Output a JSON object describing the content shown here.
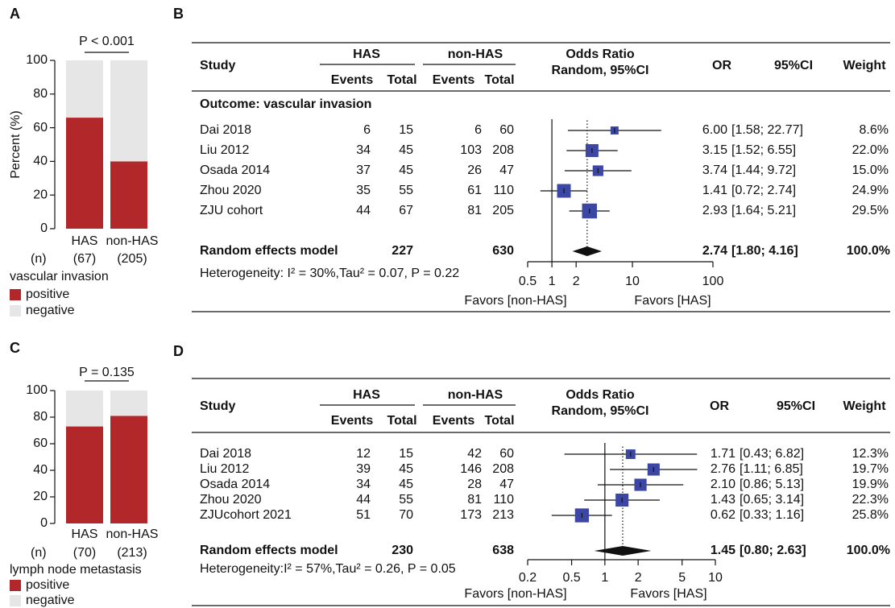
{
  "chart_data": [
    {
      "type": "stacked_bar",
      "panel": "A",
      "title": "P < 0.001",
      "ylabel": "Percent (%)",
      "ylim": [
        0,
        100
      ],
      "yticks": [
        0,
        20,
        40,
        60,
        80,
        100
      ],
      "categories": [
        "HAS",
        "non-HAS"
      ],
      "n_label": "(n)",
      "n": [
        "(67)",
        "(205)"
      ],
      "xlabel": "vascular invasion",
      "series": [
        {
          "name": "positive",
          "color": "#b2282a",
          "values": [
            66,
            40
          ]
        },
        {
          "name": "negative",
          "color": "#e6e6e6",
          "values": [
            34,
            60
          ]
        }
      ]
    },
    {
      "type": "forest",
      "panel": "B",
      "columns": {
        "study": "Study",
        "group1": "HAS",
        "group2": "non-HAS",
        "events1": "Events",
        "total1": "Total",
        "events2": "Events",
        "total2": "Total",
        "plot": "Odds Ratio",
        "plot_sub": "Random, 95%CI",
        "or": "OR",
        "ci": "95%CI",
        "weight": "Weight"
      },
      "outcome": "Outcome: vascular invasion",
      "studies": [
        {
          "name": "Dai 2018",
          "events1": 6,
          "total1": 15,
          "events2": 6,
          "total2": 60,
          "or": 6.0,
          "or_label": "6.00",
          "ci": [
            1.58,
            22.77
          ],
          "ci_label": "[1.58; 22.77]",
          "weight": 8.6,
          "weight_label": "8.6%"
        },
        {
          "name": "Liu 2012",
          "events1": 34,
          "total1": 45,
          "events2": 103,
          "total2": 208,
          "or": 3.15,
          "or_label": "3.15",
          "ci": [
            1.52,
            6.55
          ],
          "ci_label": "[1.52; 6.55]",
          "weight": 22.0,
          "weight_label": "22.0%"
        },
        {
          "name": "Osada 2014",
          "events1": 37,
          "total1": 45,
          "events2": 26,
          "total2": 47,
          "or": 3.74,
          "or_label": "3.74",
          "ci": [
            1.44,
            9.72
          ],
          "ci_label": "[1.44; 9.72]",
          "weight": 15.0,
          "weight_label": "15.0%"
        },
        {
          "name": "Zhou 2020",
          "events1": 35,
          "total1": 55,
          "events2": 61,
          "total2": 110,
          "or": 1.41,
          "or_label": "1.41",
          "ci": [
            0.72,
            2.74
          ],
          "ci_label": "[0.72; 2.74]",
          "weight": 24.9,
          "weight_label": "24.9%"
        },
        {
          "name": "ZJU cohort",
          "events1": 44,
          "total1": 67,
          "events2": 81,
          "total2": 205,
          "or": 2.93,
          "or_label": "2.93",
          "ci": [
            1.64,
            5.21
          ],
          "ci_label": "[1.64; 5.21]",
          "weight": 29.5,
          "weight_label": "29.5%"
        }
      ],
      "summary": {
        "name": "Random effects model",
        "total1": 227,
        "total2": 630,
        "or": 2.74,
        "or_label": "2.74",
        "ci": [
          1.8,
          4.16
        ],
        "ci_label": "[1.80; 4.16]",
        "weight": 100.0,
        "weight_label": "100.0%"
      },
      "heterogeneity": "Heterogeneity: I² = 30%,Tau² = 0.07, P = 0.22",
      "xscale": "log",
      "xlim": [
        0.5,
        100
      ],
      "xticks": [
        0.5,
        1,
        2,
        10,
        100
      ],
      "null_line": 1,
      "favors": [
        "Favors [non-HAS]",
        "Favors [HAS]"
      ],
      "marker_color": "#3c47a5"
    },
    {
      "type": "stacked_bar",
      "panel": "C",
      "title": "P = 0.135",
      "ylabel": "",
      "ylim": [
        0,
        100
      ],
      "yticks": [
        0,
        20,
        40,
        60,
        80,
        100
      ],
      "categories": [
        "HAS",
        "non-HAS"
      ],
      "n_label": "(n)",
      "n": [
        "(70)",
        "(213)"
      ],
      "xlabel": "lymph node metastasis",
      "series": [
        {
          "name": "positive",
          "color": "#b2282a",
          "values": [
            73,
            81
          ]
        },
        {
          "name": "negative",
          "color": "#e6e6e6",
          "values": [
            27,
            19
          ]
        }
      ]
    },
    {
      "type": "forest",
      "panel": "D",
      "columns": {
        "study": "Study",
        "group1": "HAS",
        "group2": "non-HAS",
        "events1": "Events",
        "total1": "Total",
        "events2": "Events",
        "total2": "Total",
        "plot": "Odds Ratio",
        "plot_sub": "Random, 95%CI",
        "or": "OR",
        "ci": "95%CI",
        "weight": "Weight"
      },
      "studies": [
        {
          "name": "Dai 2018",
          "events1": 12,
          "total1": 15,
          "events2": 42,
          "total2": 60,
          "or": 1.71,
          "or_label": "1.71",
          "ci": [
            0.43,
            6.82
          ],
          "ci_label": "[0.43; 6.82]",
          "weight": 12.3,
          "weight_label": "12.3%"
        },
        {
          "name": "Liu 2012",
          "events1": 39,
          "total1": 45,
          "events2": 146,
          "total2": 208,
          "or": 2.76,
          "or_label": "2.76",
          "ci": [
            1.11,
            6.85
          ],
          "ci_label": "[1.11; 6.85]",
          "weight": 19.7,
          "weight_label": "19.7%"
        },
        {
          "name": "Osada 2014",
          "events1": 34,
          "total1": 45,
          "events2": 28,
          "total2": 47,
          "or": 2.1,
          "or_label": "2.10",
          "ci": [
            0.86,
            5.13
          ],
          "ci_label": "[0.86; 5.13]",
          "weight": 19.9,
          "weight_label": "19.9%"
        },
        {
          "name": "Zhou 2020",
          "events1": 44,
          "total1": 55,
          "events2": 81,
          "total2": 110,
          "or": 1.43,
          "or_label": "1.43",
          "ci": [
            0.65,
            3.14
          ],
          "ci_label": "[0.65; 3.14]",
          "weight": 22.3,
          "weight_label": "22.3%"
        },
        {
          "name": "ZJUcohort 2021",
          "events1": 51,
          "total1": 70,
          "events2": 173,
          "total2": 213,
          "or": 0.62,
          "or_label": "0.62",
          "ci": [
            0.33,
            1.16
          ],
          "ci_label": "[0.33; 1.16]",
          "weight": 25.8,
          "weight_label": "25.8%"
        }
      ],
      "summary": {
        "name": "Random effects model",
        "total1": 230,
        "total2": 638,
        "or": 1.45,
        "or_label": "1.45",
        "ci": [
          0.8,
          2.63
        ],
        "ci_label": "[0.80; 2.63]",
        "weight": 100.0,
        "weight_label": "100.0%"
      },
      "heterogeneity": "Heterogeneity:I² = 57%,Tau² = 0.26, P = 0.05",
      "xscale": "log",
      "xlim": [
        0.2,
        10
      ],
      "xticks": [
        0.2,
        0.5,
        1,
        2,
        5,
        10
      ],
      "null_line": 1,
      "favors": [
        "Favors [non-HAS]",
        "Favors [HAS]"
      ],
      "marker_color": "#3c47a5"
    }
  ]
}
